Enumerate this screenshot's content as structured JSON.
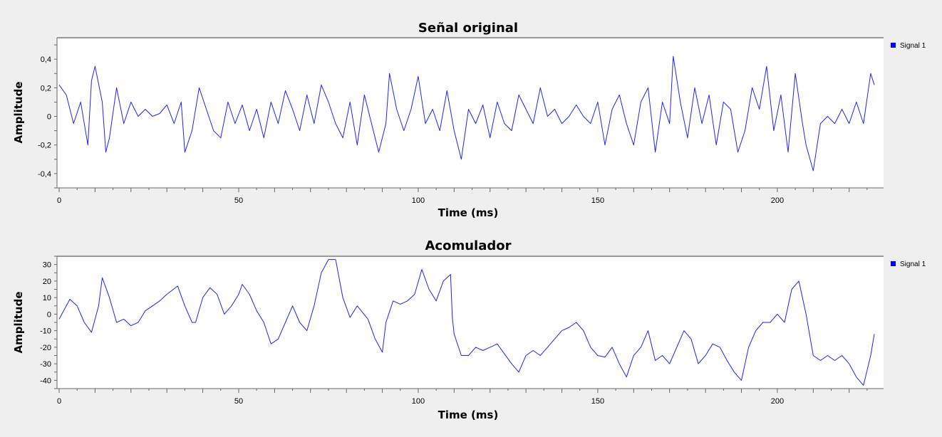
{
  "chart_data": [
    {
      "type": "line",
      "title": "Señal original",
      "xlabel": "Time (ms)",
      "ylabel": "Amplitude",
      "xlim": [
        0,
        228
      ],
      "ylim": [
        -0.5,
        0.55
      ],
      "xticks": [
        0,
        50,
        100,
        150,
        200
      ],
      "yticks": [
        -0.4,
        -0.2,
        0,
        0.2,
        0.4
      ],
      "ytick_labels": [
        "-0,4",
        "-0,2",
        "0",
        "0,2",
        "0,4"
      ],
      "grid": false,
      "legend": "top-right",
      "series": [
        {
          "name": "Signal 1",
          "color": "#2222ff",
          "x": [
            0,
            2,
            4,
            6,
            8,
            9,
            10,
            12,
            13,
            14,
            16,
            18,
            20,
            22,
            24,
            26,
            28,
            30,
            32,
            34,
            35,
            37,
            39,
            41,
            43,
            45,
            47,
            49,
            51,
            53,
            55,
            57,
            59,
            61,
            63,
            65,
            67,
            69,
            71,
            73,
            75,
            77,
            79,
            81,
            83,
            85,
            87,
            89,
            91,
            92,
            94,
            96,
            98,
            100,
            102,
            104,
            106,
            108,
            110,
            112,
            114,
            116,
            118,
            120,
            122,
            124,
            126,
            128,
            130,
            132,
            134,
            136,
            138,
            140,
            142,
            144,
            146,
            148,
            150,
            152,
            154,
            156,
            158,
            160,
            162,
            164,
            166,
            168,
            170,
            171,
            173,
            175,
            177,
            179,
            181,
            183,
            185,
            187,
            189,
            191,
            193,
            195,
            197,
            199,
            201,
            203,
            205,
            207,
            208,
            210,
            212,
            214,
            216,
            218,
            220,
            222,
            224,
            226,
            227
          ],
          "values": [
            0.22,
            0.15,
            -0.05,
            0.1,
            -0.2,
            0.25,
            0.35,
            0.1,
            -0.25,
            -0.15,
            0.2,
            -0.05,
            0.1,
            0.0,
            0.05,
            0.0,
            0.02,
            0.08,
            -0.05,
            0.1,
            -0.25,
            -0.1,
            0.2,
            0.05,
            -0.1,
            -0.15,
            0.1,
            -0.05,
            0.08,
            -0.1,
            0.05,
            -0.15,
            0.1,
            -0.05,
            0.18,
            0.05,
            -0.1,
            0.15,
            -0.05,
            0.22,
            0.1,
            -0.05,
            -0.15,
            0.1,
            -0.2,
            0.15,
            -0.05,
            -0.25,
            -0.05,
            0.3,
            0.05,
            -0.1,
            0.05,
            0.28,
            -0.05,
            0.05,
            -0.1,
            0.18,
            -0.1,
            -0.3,
            0.05,
            -0.05,
            0.08,
            -0.15,
            0.1,
            -0.05,
            -0.1,
            0.15,
            0.05,
            -0.05,
            0.2,
            0.0,
            0.05,
            -0.05,
            0.0,
            0.08,
            0.0,
            -0.05,
            0.1,
            -0.2,
            0.05,
            0.15,
            -0.05,
            -0.2,
            0.1,
            0.2,
            -0.25,
            0.1,
            -0.05,
            0.42,
            0.1,
            -0.15,
            0.2,
            -0.05,
            0.15,
            -0.2,
            0.1,
            0.05,
            -0.25,
            -0.1,
            0.2,
            0.05,
            0.35,
            -0.1,
            0.15,
            -0.25,
            0.3,
            -0.05,
            -0.2,
            -0.38,
            -0.05,
            0.0,
            -0.05,
            0.05,
            -0.05,
            0.1,
            -0.05,
            0.3,
            0.22
          ]
        }
      ]
    },
    {
      "type": "line",
      "title": "Acomulador",
      "xlabel": "Time (ms)",
      "ylabel": "Amplitude",
      "xlim": [
        0,
        228
      ],
      "ylim": [
        -45,
        35
      ],
      "xticks": [
        0,
        50,
        100,
        150,
        200
      ],
      "yticks": [
        -40,
        -30,
        -20,
        -10,
        0,
        10,
        20,
        30
      ],
      "ytick_labels": [
        "-40",
        "-30",
        "-20",
        "-10",
        "0",
        "10",
        "20",
        "30"
      ],
      "grid": false,
      "legend": "top-right",
      "series": [
        {
          "name": "Signal 1",
          "color": "#2222ff",
          "x": [
            0,
            3,
            5,
            7,
            9,
            11,
            12,
            14,
            16,
            18,
            20,
            22,
            24,
            26,
            28,
            30,
            33,
            35,
            37,
            38,
            40,
            42,
            44,
            46,
            48,
            50,
            51,
            53,
            55,
            57,
            59,
            61,
            63,
            65,
            67,
            69,
            71,
            73,
            75,
            77,
            79,
            81,
            83,
            86,
            88,
            90,
            91,
            93,
            95,
            97,
            99,
            101,
            103,
            105,
            107,
            109,
            109.5,
            110,
            112,
            114,
            116,
            118,
            120,
            122,
            124,
            126,
            128,
            130,
            132,
            134,
            136,
            138,
            140,
            142,
            144,
            146,
            148,
            150,
            152,
            154,
            156,
            158,
            160,
            162,
            164,
            166,
            168,
            170,
            172,
            174,
            176,
            178,
            180,
            182,
            184,
            186,
            188,
            190,
            192,
            194,
            196,
            198,
            200,
            202,
            204,
            206,
            208,
            210,
            212,
            214,
            216,
            218,
            220,
            222,
            224,
            226,
            227
          ],
          "values": [
            -3,
            9,
            5,
            -5,
            -11,
            5,
            22,
            10,
            -5,
            -3,
            -7,
            -5,
            2,
            5,
            8,
            12,
            17,
            5,
            -5,
            -5,
            10,
            16,
            12,
            0,
            5,
            12,
            18,
            12,
            2,
            -5,
            -18,
            -15,
            -5,
            5,
            -5,
            -10,
            5,
            25,
            33,
            33,
            10,
            -2,
            5,
            -3,
            -15,
            -23,
            -5,
            8,
            6,
            8,
            12,
            27,
            15,
            8,
            20,
            24,
            -2,
            -12,
            -25,
            -25,
            -20,
            -22,
            -20,
            -18,
            -24,
            -30,
            -35,
            -25,
            -22,
            -25,
            -20,
            -15,
            -10,
            -8,
            -5,
            -10,
            -20,
            -25,
            -26,
            -20,
            -30,
            -38,
            -25,
            -20,
            -10,
            -28,
            -25,
            -30,
            -20,
            -10,
            -15,
            -30,
            -25,
            -18,
            -20,
            -28,
            -35,
            -40,
            -20,
            -10,
            -5,
            -5,
            0,
            -5,
            15,
            20,
            0,
            -25,
            -28,
            -25,
            -28,
            -25,
            -30,
            -38,
            -43,
            -25,
            -12
          ]
        }
      ]
    }
  ]
}
